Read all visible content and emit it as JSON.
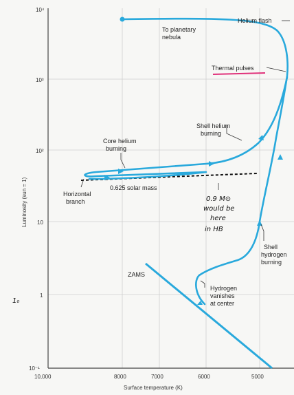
{
  "axes": {
    "x_title": "Surface temperature (K)",
    "y_title": "Luminosity (sun = 1)",
    "x_ticks": [
      "10,000",
      "8000",
      "7000",
      "6000",
      "5000"
    ],
    "y_ticks": [
      "10⁴",
      "10³",
      "10²",
      "10",
      "1",
      "10⁻¹"
    ]
  },
  "labels": {
    "helium_flash": "Helium flash",
    "planetary_1": "To planetary",
    "planetary_2": "nebula",
    "thermal_pulses": "Thermal pulses",
    "shell_helium_1": "Shell helium",
    "shell_helium_2": "burning",
    "core_helium_1": "Core helium",
    "core_helium_2": "burning",
    "horizontal_1": "Horizontal",
    "horizontal_2": "branch",
    "solar_mass": "0.625 solar mass",
    "shell_hydrogen_1": "Shell",
    "shell_hydrogen_2": "hydrogen",
    "shell_hydrogen_3": "burning",
    "zams": "ZAMS",
    "hydrogen_vanishes_1": "Hydrogen",
    "hydrogen_vanishes_2": "vanishes",
    "hydrogen_vanishes_3": "at center"
  },
  "handwriting": {
    "note_1": "0.9 M⊙",
    "note_2": "would be",
    "note_3": "here",
    "note_4": "in HB",
    "margin_mark": "1₀"
  },
  "colors": {
    "track": "#29a9dc",
    "underline": "#e0307a",
    "axis": "#444444"
  }
}
